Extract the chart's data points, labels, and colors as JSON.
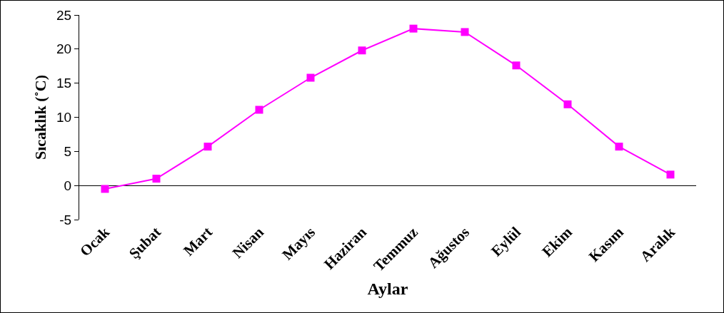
{
  "chart_data": {
    "type": "line",
    "xlabel": "Aylar",
    "ylabel": "Sıcaklık (˚C)",
    "categories": [
      "Ocak",
      "Şubat",
      "Mart",
      "Nisan",
      "Mayıs",
      "Haziran",
      "Temmuz",
      "Ağustos",
      "Eylül",
      "Ekim",
      "Kasım",
      "Aralık"
    ],
    "series": [
      {
        "color": "#ff00ff",
        "values": [
          -0.5,
          1.0,
          5.7,
          11.1,
          15.8,
          19.8,
          23.0,
          22.5,
          17.6,
          11.9,
          5.7,
          1.6
        ]
      }
    ],
    "ylim": [
      -5,
      25
    ],
    "yticks": [
      -5,
      0,
      5,
      10,
      15,
      20,
      25
    ],
    "marker": "square",
    "line_style": "solid"
  }
}
